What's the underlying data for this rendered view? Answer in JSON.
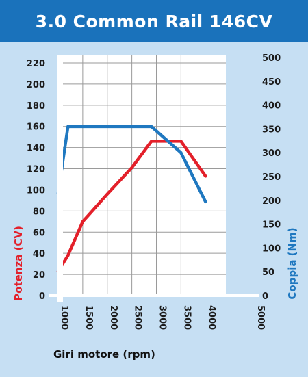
{
  "chart_data": {
    "type": "line",
    "title": "3.0 Common Rail 146CV",
    "xlabel": "Giri motore (rpm)",
    "ylabel_left": "Potenza (CV)",
    "ylabel_right": "Coppia (Nm)",
    "xlim": [
      1000,
      5000
    ],
    "ylim_left": [
      0,
      220
    ],
    "ylim_right": [
      0,
      500
    ],
    "x_ticks": [
      "1000",
      "1500",
      "2000",
      "2500",
      "3000",
      "3500",
      "4000",
      "5000"
    ],
    "y_left_ticks": [
      "0",
      "20",
      "40",
      "60",
      "80",
      "100",
      "120",
      "140",
      "160",
      "180",
      "200",
      "220"
    ],
    "y_right_ticks": [
      "0",
      "50",
      "100",
      "150",
      "200",
      "250",
      "300",
      "350",
      "400",
      "450",
      "500"
    ],
    "grid": true,
    "series": [
      {
        "name": "Potenza (CV)",
        "axis": "left",
        "color": "#e3202a",
        "x": [
          1000,
          1200,
          1500,
          2000,
          2500,
          2900,
          3500,
          4000
        ],
        "y": [
          23,
          38,
          70,
          96,
          121,
          146,
          146,
          113
        ]
      },
      {
        "name": "Coppia (Nm)",
        "axis": "right",
        "color": "#1f78c0",
        "x": [
          1000,
          1200,
          2900,
          3500,
          4000
        ],
        "y": [
          215,
          355,
          355,
          300,
          197
        ]
      }
    ]
  }
}
